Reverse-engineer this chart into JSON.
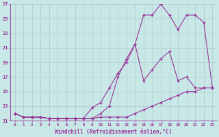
{
  "xlabel": "Windchill (Refroidissement éolien,°C)",
  "background_color": "#c8e8e8",
  "grid_color": "#b0c8c8",
  "line_color": "#993399",
  "xlim": [
    -0.5,
    23.5
  ],
  "ylim": [
    11,
    27
  ],
  "yticks": [
    11,
    13,
    15,
    17,
    19,
    21,
    23,
    25,
    27
  ],
  "xticks": [
    0,
    1,
    2,
    3,
    4,
    5,
    6,
    7,
    8,
    9,
    10,
    11,
    12,
    13,
    14,
    15,
    16,
    17,
    18,
    19,
    20,
    21,
    22,
    23
  ],
  "series": [
    {
      "x": [
        0,
        1,
        2,
        3,
        4,
        5,
        6,
        7,
        8,
        9,
        10,
        11,
        12,
        13,
        14,
        15,
        16,
        17,
        18,
        19,
        20,
        21,
        22,
        23
      ],
      "y": [
        12.0,
        11.5,
        11.5,
        11.5,
        11.3,
        11.3,
        11.3,
        11.3,
        11.3,
        11.3,
        12.0,
        13.0,
        17.0,
        19.5,
        21.5,
        25.5,
        25.5,
        27.0,
        25.5,
        23.5,
        25.5,
        25.5,
        24.5,
        15.5
      ]
    },
    {
      "x": [
        0,
        1,
        2,
        3,
        4,
        5,
        6,
        7,
        8,
        9,
        10,
        11,
        12,
        13,
        14,
        15,
        16,
        17,
        18,
        19,
        20,
        21,
        22,
        23
      ],
      "y": [
        12.0,
        11.5,
        11.5,
        11.5,
        11.3,
        11.3,
        11.3,
        11.3,
        11.3,
        12.8,
        13.5,
        15.5,
        17.5,
        19.0,
        21.5,
        16.5,
        18.0,
        19.5,
        20.5,
        16.5,
        17.0,
        15.5,
        15.5,
        15.5
      ]
    },
    {
      "x": [
        0,
        1,
        2,
        3,
        4,
        5,
        6,
        7,
        8,
        9,
        10,
        11,
        12,
        13,
        14,
        15,
        16,
        17,
        18,
        19,
        20,
        21,
        22,
        23
      ],
      "y": [
        12.0,
        11.5,
        11.5,
        11.5,
        11.3,
        11.3,
        11.3,
        11.3,
        11.3,
        11.3,
        11.5,
        11.5,
        11.5,
        11.5,
        12.0,
        12.5,
        13.0,
        13.5,
        14.0,
        14.5,
        15.0,
        15.0,
        15.5,
        15.5
      ]
    }
  ]
}
